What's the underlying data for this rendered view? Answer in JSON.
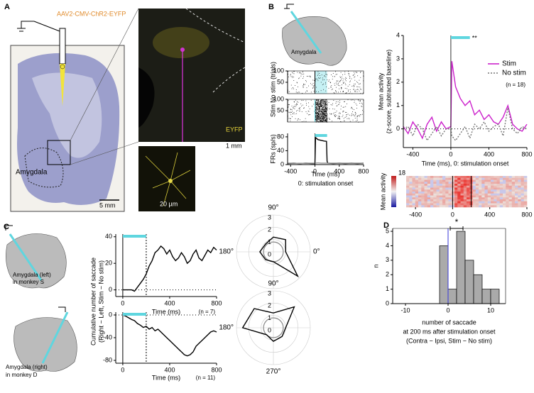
{
  "figure": {
    "panel_labels": [
      "A",
      "B",
      "C",
      "D"
    ],
    "panel_a": {
      "virus": "AAV2-CMV-ChR2-EYFP",
      "region": "Amygdala",
      "scale_brain": "5 mm",
      "channel": "EYFP",
      "scale_zoom": "1 mm",
      "scale_cell": "20 µm"
    },
    "panel_b": {
      "region": "Amygdala"
    },
    "panel_c": {
      "top_site": [
        "Amygdala (left)",
        "in monkey S"
      ],
      "bottom_site": [
        "Amygdala (right)",
        "in monkey D"
      ]
    }
  },
  "chart_data": [
    {
      "type": "raster",
      "ylabel": "No stim (trials)",
      "xlim": [
        -450,
        800
      ],
      "ylim": [
        0,
        100
      ],
      "yticks": [
        50,
        100
      ],
      "stim_window": [
        0,
        200
      ],
      "dense": false
    },
    {
      "type": "raster",
      "ylabel": "Stim",
      "xlim": [
        -450,
        800
      ],
      "ylim": [
        0,
        100
      ],
      "yticks": [
        50,
        100
      ],
      "stim_window": [
        0,
        200
      ],
      "dense": true
    },
    {
      "type": "line",
      "ylabel": "FRs (sp/s)",
      "xlabel": [
        "Time (ms)",
        "0: stimulation onset"
      ],
      "x": [
        -450,
        -350,
        -250,
        -150,
        -50,
        0,
        10,
        50,
        100,
        150,
        190,
        200,
        210,
        300,
        400,
        500,
        600,
        700,
        800
      ],
      "series": [
        {
          "name": "Stim",
          "color": "#000000",
          "values": [
            3,
            4,
            3,
            4,
            3,
            3,
            78,
            72,
            70,
            68,
            67,
            10,
            4,
            3,
            4,
            3,
            4,
            3,
            4
          ]
        },
        {
          "name": "No stim",
          "color": "#999999",
          "values": [
            4,
            4,
            3,
            4,
            4,
            4,
            4,
            5,
            4,
            4,
            4,
            4,
            4,
            4,
            4,
            4,
            4,
            4,
            4
          ]
        }
      ],
      "xlim": [
        -450,
        800
      ],
      "ylim": [
        0,
        90
      ],
      "xticks": [
        -400,
        0,
        400,
        800
      ],
      "yticks": [
        0,
        40,
        80
      ],
      "stim_window": [
        0,
        200
      ]
    },
    {
      "type": "line",
      "ylabel": [
        "Mean activity",
        "(z-score, subtracted baseline)"
      ],
      "xlabel": "Time (ms), 0: stimulation onset",
      "x": [
        -500,
        -450,
        -400,
        -350,
        -300,
        -250,
        -200,
        -150,
        -100,
        -50,
        0,
        10,
        50,
        100,
        150,
        200,
        250,
        300,
        350,
        400,
        450,
        500,
        550,
        600,
        650,
        700,
        750,
        800
      ],
      "series": [
        {
          "name": "Stim",
          "color": "#cc22cc",
          "values": [
            0.1,
            -0.2,
            0.3,
            0.0,
            -0.4,
            0.2,
            0.5,
            -0.1,
            0.3,
            0.0,
            0.1,
            2.9,
            1.8,
            1.3,
            1.0,
            1.2,
            0.6,
            0.8,
            0.4,
            0.6,
            0.3,
            0.2,
            0.5,
            1.0,
            0.2,
            0.0,
            -0.1,
            0.2
          ]
        },
        {
          "name": "No stim",
          "color": "#777777",
          "dashed": true,
          "values": [
            0.0,
            0.1,
            -0.3,
            0.2,
            0.0,
            -0.5,
            -0.2,
            0.1,
            -0.3,
            0.0,
            0.0,
            -0.3,
            -0.5,
            -0.2,
            0.1,
            -0.4,
            0.2,
            0.0,
            0.3,
            -0.1,
            0.1,
            0.2,
            -0.3,
            0.9,
            0.0,
            -0.2,
            0.1,
            0.0
          ]
        }
      ],
      "xlim": [
        -500,
        800
      ],
      "ylim": [
        -0.8,
        4
      ],
      "xticks": [
        -400,
        0,
        400,
        800
      ],
      "yticks": [
        0,
        1,
        2,
        3,
        4
      ],
      "stim_window": [
        0,
        200
      ],
      "annotation": "**",
      "legend": "right",
      "note": "(n = 18)",
      "zero_line": true
    },
    {
      "type": "heatmap",
      "ylabel": "Mean activity",
      "xlim": [
        -500,
        800
      ],
      "xticks": [
        -400,
        0,
        400,
        800
      ],
      "clim": [
        -18,
        18
      ],
      "colorbar_ticks": [
        18
      ],
      "stim_window": [
        0,
        200
      ]
    },
    {
      "type": "line",
      "ylabel": [
        "Cumulative number of saccade",
        "(Right − Left, Stim − No stim)"
      ],
      "xlabel": "Time (ms)",
      "note": "(n = 7)",
      "x": [
        0,
        25,
        50,
        75,
        100,
        125,
        150,
        175,
        200,
        225,
        250,
        275,
        300,
        325,
        350,
        375,
        400,
        425,
        450,
        475,
        500,
        525,
        550,
        575,
        600,
        625,
        650,
        675,
        700,
        725,
        750,
        775,
        800
      ],
      "series": [
        {
          "name": "Stim − No stim",
          "color": "#000000",
          "values": [
            0,
            0,
            0,
            0,
            -1,
            2,
            5,
            8,
            12,
            18,
            22,
            28,
            30,
            33,
            31,
            27,
            30,
            25,
            22,
            24,
            28,
            25,
            20,
            22,
            27,
            30,
            24,
            22,
            26,
            30,
            28,
            32,
            30
          ]
        }
      ],
      "xlim": [
        -60,
        800
      ],
      "ylim": [
        -5,
        42
      ],
      "xticks": [
        0,
        400,
        800
      ],
      "yticks": [
        0,
        20,
        40
      ],
      "stim_window": [
        0,
        200
      ],
      "window_lines": true,
      "zero_line": true
    },
    {
      "type": "line",
      "xlabel": "Time (ms)",
      "note": "(n = 11)",
      "x": [
        0,
        25,
        50,
        75,
        100,
        125,
        150,
        175,
        200,
        225,
        250,
        275,
        300,
        325,
        350,
        375,
        400,
        425,
        450,
        475,
        500,
        525,
        550,
        575,
        600,
        625,
        650,
        675,
        700,
        725,
        750,
        775,
        800
      ],
      "series": [
        {
          "name": "Stim − No stim",
          "color": "#000000",
          "values": [
            0,
            -2,
            -5,
            -8,
            -10,
            -15,
            -18,
            -22,
            -20,
            -25,
            -22,
            -28,
            -25,
            -30,
            -35,
            -40,
            -45,
            -50,
            -55,
            -60,
            -65,
            -70,
            -72,
            -70,
            -65,
            -55,
            -50,
            -45,
            -40,
            -35,
            -30,
            -28,
            -30
          ]
        }
      ],
      "xlim": [
        -60,
        800
      ],
      "ylim": [
        -85,
        5
      ],
      "xticks": [
        0,
        400,
        800
      ],
      "yticks": [
        0,
        -40,
        -80
      ],
      "stim_window": [
        0,
        200
      ],
      "window_lines": true,
      "zero_line": true
    },
    {
      "type": "polar",
      "angles": [
        0,
        45,
        90,
        135,
        180,
        225,
        270,
        315
      ],
      "values": [
        1.0,
        1.4,
        1.2,
        0.9,
        1.1,
        0.9,
        0.8,
        2.8
      ],
      "baseline": 0.8,
      "rlim": [
        0,
        3
      ],
      "rticks": [
        0,
        1,
        2,
        3
      ],
      "angle_ticks": [
        {
          "value": 90,
          "label": "90°"
        },
        {
          "value": 180,
          "label": "180°"
        },
        {
          "value": 0,
          "label": "0°"
        }
      ]
    },
    {
      "type": "polar",
      "angles": [
        0,
        45,
        90,
        135,
        180,
        225,
        270,
        315
      ],
      "values": [
        1.0,
        2.4,
        1.2,
        2.2,
        2.5,
        0.8,
        1.1,
        1.0
      ],
      "baseline": 0.8,
      "rlim": [
        0,
        3
      ],
      "rticks": [
        0,
        1,
        2,
        3
      ],
      "angle_ticks": [
        {
          "value": 90,
          "label": "90°"
        },
        {
          "value": 180,
          "label": "180°"
        },
        {
          "value": 270,
          "label": "270°"
        }
      ]
    },
    {
      "type": "histogram",
      "bins": [
        -2,
        0,
        2,
        4,
        6,
        8,
        10,
        12
      ],
      "counts": [
        4,
        1,
        5,
        3,
        2,
        1,
        1
      ],
      "color": "#aaaaaa",
      "xlim": [
        -13,
        13.5
      ],
      "ylim": [
        0,
        5.2
      ],
      "xticks": [
        -10,
        0,
        10
      ],
      "yticks": [
        0,
        1,
        2,
        3,
        4,
        5
      ],
      "ylabel": "n",
      "xlabel": [
        "number of saccade",
        "at 200 ms after stimulation onset",
        "(Contra − Ipsi, Stim − No stim)"
      ],
      "ref_line": 0,
      "mean_ci": [
        0.5,
        3.5
      ],
      "annotation": "*"
    }
  ]
}
